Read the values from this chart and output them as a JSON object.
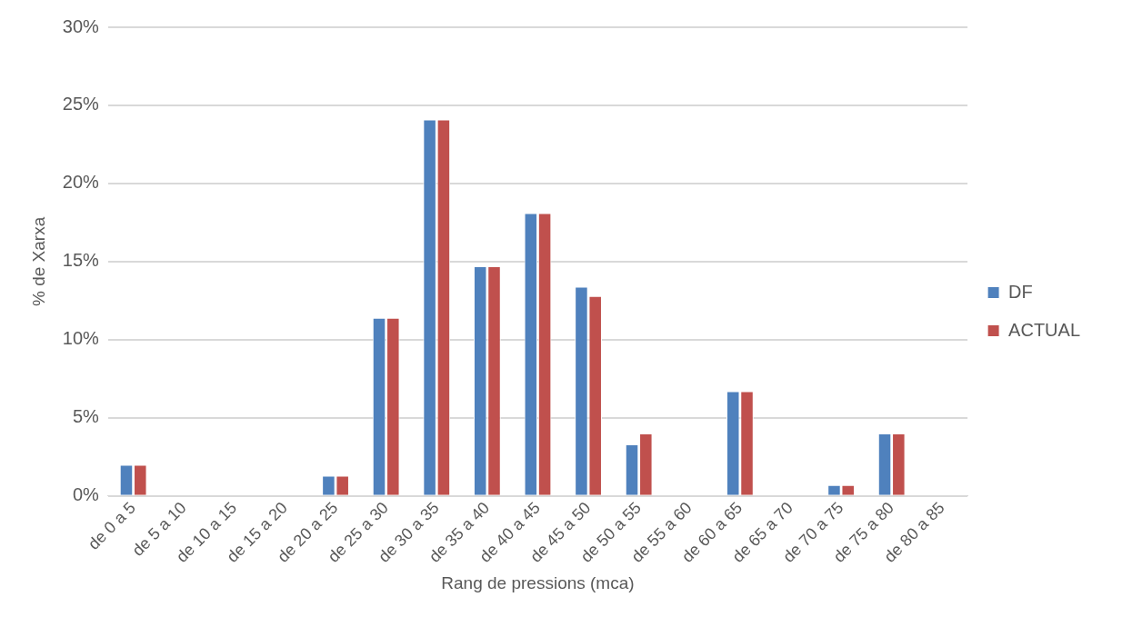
{
  "chart_data": {
    "type": "bar",
    "xlabel": "Rang de pressions (mca)",
    "ylabel": "% de Xarxa",
    "categories": [
      "de 0 a 5",
      "de 5 a 10",
      "de 10 a 15",
      "de 15 a 20",
      "de 20 a 25",
      "de 25 a 30",
      "de 30 a 35",
      "de 35 a 40",
      "de 40 a 45",
      "de 45 a 50",
      "de 50 a 55",
      "de 55 a 60",
      "de 60 a 65",
      "de 65 a 70",
      "de 70 a 75",
      "de 75 a 80",
      "de 80 a 85"
    ],
    "series": [
      {
        "name": "DF",
        "color": "#4f81bd",
        "values": [
          2.0,
          0,
          0,
          0,
          1.3,
          11.4,
          24.1,
          14.7,
          18.1,
          13.4,
          3.3,
          0,
          6.7,
          0,
          0.7,
          4.0,
          0
        ]
      },
      {
        "name": "ACTUAL",
        "color": "#c0504d",
        "values": [
          2.0,
          0,
          0,
          0,
          1.3,
          11.4,
          24.1,
          14.7,
          18.1,
          12.8,
          4.0,
          0,
          6.7,
          0,
          0.7,
          4.0,
          0
        ]
      }
    ],
    "ylim": [
      0,
      30
    ],
    "yticks": [
      {
        "value": 0,
        "label": "0%"
      },
      {
        "value": 5,
        "label": "5%"
      },
      {
        "value": 10,
        "label": "10%"
      },
      {
        "value": 15,
        "label": "15%"
      },
      {
        "value": 20,
        "label": "20%"
      },
      {
        "value": 25,
        "label": "25%"
      },
      {
        "value": 30,
        "label": "30%"
      }
    ],
    "grid": "y",
    "legend": "right"
  }
}
